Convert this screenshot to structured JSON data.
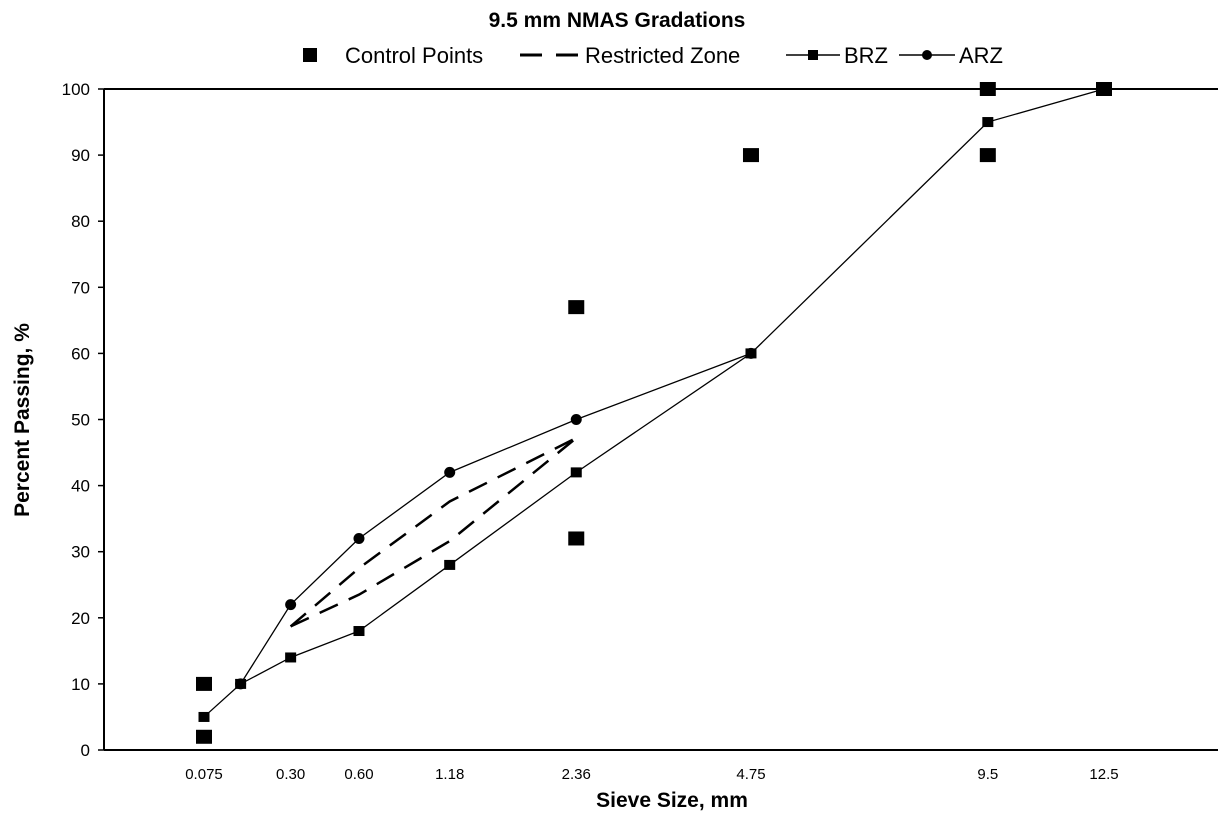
{
  "chart_data": {
    "type": "line",
    "title": "9.5 mm NMAS Gradations",
    "xlabel": "Sieve Size, mm",
    "ylabel": "Percent Passing, %",
    "x_scale": "0.45 power of sieve size",
    "x_tick_labels": [
      "0.075",
      "0.30",
      "0.60",
      "1.18",
      "2.36",
      "4.75",
      "9.5",
      "12.5"
    ],
    "x_tick_values": [
      0.075,
      0.3,
      0.6,
      1.18,
      2.36,
      4.75,
      9.5,
      12.5
    ],
    "ylim": [
      0,
      100
    ],
    "y_ticks": [
      0,
      10,
      20,
      30,
      40,
      50,
      60,
      70,
      80,
      90,
      100
    ],
    "grid": false,
    "legend_position": "top",
    "series": [
      {
        "name": "Control Points",
        "style": "markers",
        "points": [
          {
            "x": 0.075,
            "y": 2
          },
          {
            "x": 0.075,
            "y": 10
          },
          {
            "x": 2.36,
            "y": 32
          },
          {
            "x": 2.36,
            "y": 67
          },
          {
            "x": 4.75,
            "y": 90
          },
          {
            "x": 9.5,
            "y": 90
          },
          {
            "x": 9.5,
            "y": 100
          },
          {
            "x": 12.5,
            "y": 100
          }
        ]
      },
      {
        "name": "Restricted Zone",
        "style": "dashed",
        "segments": [
          [
            {
              "x": 0.3,
              "y": 18.7
            },
            {
              "x": 0.6,
              "y": 23.5
            },
            {
              "x": 1.18,
              "y": 31.6
            },
            {
              "x": 2.36,
              "y": 47.2
            }
          ],
          [
            {
              "x": 0.3,
              "y": 18.7
            },
            {
              "x": 0.6,
              "y": 27.5
            },
            {
              "x": 1.18,
              "y": 37.6
            },
            {
              "x": 2.36,
              "y": 47.2
            }
          ]
        ]
      },
      {
        "name": "BRZ",
        "style": "line-square",
        "points": [
          {
            "x": 0.075,
            "y": 5
          },
          {
            "x": 0.15,
            "y": 10
          },
          {
            "x": 0.3,
            "y": 14
          },
          {
            "x": 0.6,
            "y": 18
          },
          {
            "x": 1.18,
            "y": 28
          },
          {
            "x": 2.36,
            "y": 42
          },
          {
            "x": 4.75,
            "y": 60
          },
          {
            "x": 9.5,
            "y": 95
          },
          {
            "x": 12.5,
            "y": 100
          }
        ]
      },
      {
        "name": "ARZ",
        "style": "line-circle",
        "points": [
          {
            "x": 0.15,
            "y": 10
          },
          {
            "x": 0.3,
            "y": 22
          },
          {
            "x": 0.6,
            "y": 32
          },
          {
            "x": 1.18,
            "y": 42
          },
          {
            "x": 2.36,
            "y": 50
          },
          {
            "x": 4.75,
            "y": 60
          }
        ]
      }
    ]
  }
}
